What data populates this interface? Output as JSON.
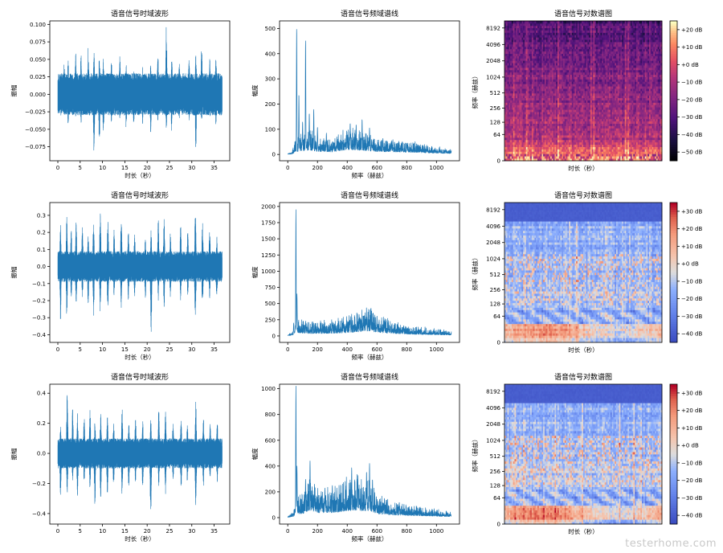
{
  "watermark": "testerhome.com",
  "colors": {
    "line": "#1f77b4",
    "axis": "#000000"
  },
  "chart_data": [
    {
      "type": "line",
      "kind": "waveform",
      "row": 0,
      "col": 0,
      "title": "语音信号时域波形",
      "xlabel": "时长（秒）",
      "ylabel": "振幅",
      "xlim": [
        -1.8,
        38.5
      ],
      "ylim": [
        -0.095,
        0.105
      ],
      "xticks": [
        0,
        5,
        10,
        15,
        20,
        25,
        30,
        35
      ],
      "xtick_labels": [
        "0",
        "5",
        "10",
        "15",
        "20",
        "25",
        "30",
        "35"
      ],
      "yticks": [
        -0.075,
        -0.05,
        -0.025,
        0.0,
        0.025,
        0.05,
        0.075,
        0.1
      ],
      "ytick_labels": [
        "−0.075",
        "−0.050",
        "−0.025",
        "0.000",
        "0.025",
        "0.050",
        "0.075",
        "0.100"
      ],
      "duration": 36.8,
      "envelope_max": 0.03,
      "peaks": [
        [
          1.4,
          0.043,
          -0.035
        ],
        [
          2.3,
          0.052,
          -0.046
        ],
        [
          4.0,
          0.06,
          -0.035
        ],
        [
          5.2,
          0.06,
          -0.045
        ],
        [
          6.8,
          0.07,
          -0.03
        ],
        [
          8.1,
          0.06,
          -0.085
        ],
        [
          9.3,
          0.062,
          -0.072
        ],
        [
          10.2,
          0.055,
          -0.06
        ],
        [
          12.0,
          0.055,
          -0.045
        ],
        [
          13.9,
          0.058,
          -0.04
        ],
        [
          15.3,
          0.045,
          -0.05
        ],
        [
          17.0,
          0.035,
          -0.045
        ],
        [
          19.0,
          0.04,
          -0.045
        ],
        [
          20.8,
          0.045,
          -0.055
        ],
        [
          22.4,
          0.062,
          -0.04
        ],
        [
          24.3,
          0.1,
          -0.05
        ],
        [
          25.5,
          0.058,
          -0.055
        ],
        [
          27.2,
          0.048,
          -0.04
        ],
        [
          29.4,
          0.052,
          -0.045
        ],
        [
          30.9,
          0.06,
          -0.083
        ],
        [
          32.2,
          0.07,
          -0.04
        ],
        [
          34.0,
          0.055,
          -0.035
        ],
        [
          35.4,
          0.06,
          -0.045
        ]
      ]
    },
    {
      "type": "line",
      "kind": "spectrum",
      "row": 0,
      "col": 1,
      "title": "语音信号频域谱线",
      "xlabel": "频率（赫兹）",
      "ylabel": "幅度",
      "xlim": [
        -55,
        1155
      ],
      "ylim": [
        -25,
        530
      ],
      "xticks": [
        0,
        200,
        400,
        600,
        800,
        1000
      ],
      "xtick_labels": [
        "0",
        "200",
        "400",
        "600",
        "800",
        "1000"
      ],
      "yticks": [
        0,
        100,
        200,
        300,
        400,
        500
      ],
      "ytick_labels": [
        "0",
        "100",
        "200",
        "300",
        "400",
        "500"
      ],
      "fmax": 1100,
      "base": [
        [
          0,
          3
        ],
        [
          30,
          8
        ],
        [
          50,
          40
        ],
        [
          80,
          55
        ],
        [
          120,
          55
        ],
        [
          150,
          70
        ],
        [
          200,
          45
        ],
        [
          300,
          40
        ],
        [
          400,
          75
        ],
        [
          500,
          65
        ],
        [
          600,
          45
        ],
        [
          800,
          35
        ],
        [
          1000,
          20
        ],
        [
          1100,
          15
        ]
      ],
      "peaks": [
        [
          60,
          505
        ],
        [
          75,
          240
        ],
        [
          120,
          455
        ],
        [
          100,
          130
        ],
        [
          145,
          165
        ],
        [
          175,
          180
        ],
        [
          200,
          110
        ],
        [
          260,
          85
        ],
        [
          330,
          70
        ],
        [
          420,
          125
        ],
        [
          460,
          120
        ],
        [
          500,
          140
        ],
        [
          550,
          105
        ],
        [
          640,
          65
        ],
        [
          700,
          55
        ],
        [
          800,
          45
        ]
      ]
    },
    {
      "type": "heatmap",
      "kind": "spectrogram",
      "row": 0,
      "col": 2,
      "cmap": "magma",
      "title": "语音信号对数谱图",
      "xlabel": "时长（秒）",
      "ylabel": "频率（赫兹）",
      "yticks": [
        0,
        64,
        128,
        256,
        512,
        1024,
        2048,
        4096,
        8192
      ],
      "ytick_labels": [
        "0",
        "64",
        "128",
        "256",
        "512",
        "1024",
        "2048",
        "4096",
        "8192"
      ],
      "colorbar_ticks": [
        -50,
        -40,
        -30,
        -20,
        -10,
        0,
        10,
        20
      ],
      "colorbar_labels": [
        "−50 dB",
        "−40 dB",
        "−30 dB",
        "−20 dB",
        "−10 dB",
        "+0 dB",
        "+10 dB",
        "+20 dB"
      ],
      "clim": [
        -55,
        25
      ],
      "has_cutoff": false
    },
    {
      "type": "line",
      "kind": "waveform",
      "row": 1,
      "col": 0,
      "title": "语音信号时域波形",
      "xlabel": "时长（秒）",
      "ylabel": "振幅",
      "xlim": [
        -1.8,
        38.5
      ],
      "ylim": [
        -0.445,
        0.375
      ],
      "xticks": [
        0,
        5,
        10,
        15,
        20,
        25,
        30,
        35
      ],
      "xtick_labels": [
        "0",
        "5",
        "10",
        "15",
        "20",
        "25",
        "30",
        "35"
      ],
      "yticks": [
        -0.4,
        -0.3,
        -0.2,
        -0.1,
        0.0,
        0.1,
        0.2,
        0.3
      ],
      "ytick_labels": [
        "−0.4",
        "−0.3",
        "−0.2",
        "−0.1",
        "0.0",
        "0.1",
        "0.2",
        "0.3"
      ],
      "duration": 36.8,
      "envelope_max": 0.09,
      "peaks": [
        [
          0.6,
          0.25,
          -0.32
        ],
        [
          2.0,
          0.3,
          -0.3
        ],
        [
          3.0,
          0.22,
          -0.2
        ],
        [
          4.1,
          0.28,
          -0.25
        ],
        [
          5.5,
          0.25,
          -0.18
        ],
        [
          6.8,
          0.2,
          -0.22
        ],
        [
          8.0,
          0.27,
          -0.3
        ],
        [
          9.5,
          0.34,
          -0.3
        ],
        [
          11.2,
          0.3,
          -0.28
        ],
        [
          12.6,
          0.22,
          -0.18
        ],
        [
          14.2,
          0.3,
          -0.25
        ],
        [
          15.8,
          0.22,
          -0.2
        ],
        [
          17.2,
          0.2,
          -0.18
        ],
        [
          19.6,
          0.18,
          -0.2
        ],
        [
          20.9,
          0.22,
          -0.42
        ],
        [
          22.5,
          0.28,
          -0.2
        ],
        [
          23.8,
          0.3,
          -0.25
        ],
        [
          25.2,
          0.2,
          -0.18
        ],
        [
          27.5,
          0.25,
          -0.2
        ],
        [
          29.1,
          0.22,
          -0.18
        ],
        [
          30.8,
          0.34,
          -0.35
        ],
        [
          32.4,
          0.26,
          -0.25
        ],
        [
          34.0,
          0.23,
          -0.2
        ],
        [
          35.6,
          0.18,
          -0.22
        ]
      ]
    },
    {
      "type": "line",
      "kind": "spectrum",
      "row": 1,
      "col": 1,
      "title": "语音信号频域谱线",
      "xlabel": "频率（赫兹）",
      "ylabel": "幅度",
      "xlim": [
        -55,
        1155
      ],
      "ylim": [
        -100,
        2060
      ],
      "xticks": [
        0,
        200,
        400,
        600,
        800,
        1000
      ],
      "xtick_labels": [
        "0",
        "200",
        "400",
        "600",
        "800",
        "1000"
      ],
      "yticks": [
        0,
        250,
        500,
        750,
        1000,
        1250,
        1500,
        1750,
        2000
      ],
      "ytick_labels": [
        "0",
        "250",
        "500",
        "750",
        "1000",
        "1250",
        "1500",
        "1750",
        "2000"
      ],
      "fmax": 1100,
      "base": [
        [
          0,
          10
        ],
        [
          40,
          60
        ],
        [
          55,
          250
        ],
        [
          80,
          180
        ],
        [
          150,
          140
        ],
        [
          250,
          150
        ],
        [
          350,
          170
        ],
        [
          450,
          220
        ],
        [
          550,
          300
        ],
        [
          600,
          220
        ],
        [
          700,
          150
        ],
        [
          800,
          110
        ],
        [
          950,
          80
        ],
        [
          1100,
          50
        ]
      ],
      "peaks": [
        [
          55,
          1950
        ],
        [
          62,
          650
        ],
        [
          40,
          200
        ],
        [
          120,
          230
        ],
        [
          170,
          220
        ],
        [
          300,
          200
        ],
        [
          420,
          230
        ],
        [
          480,
          330
        ],
        [
          530,
          380
        ],
        [
          560,
          430
        ],
        [
          600,
          310
        ],
        [
          650,
          240
        ],
        [
          780,
          160
        ]
      ]
    },
    {
      "type": "heatmap",
      "kind": "spectrogram",
      "row": 1,
      "col": 2,
      "cmap": "coolwarm",
      "title": "语音信号对数谱图",
      "xlabel": "时长（秒）",
      "ylabel": "频率（赫兹）",
      "yticks": [
        0,
        64,
        128,
        256,
        512,
        1024,
        2048,
        4096,
        8192
      ],
      "ytick_labels": [
        "0",
        "64",
        "128",
        "256",
        "512",
        "1024",
        "2048",
        "4096",
        "8192"
      ],
      "colorbar_ticks": [
        -40,
        -30,
        -20,
        -10,
        0,
        10,
        20,
        30
      ],
      "colorbar_labels": [
        "−40 dB",
        "−30 dB",
        "−20 dB",
        "−10 dB",
        "+0 dB",
        "+10 dB",
        "+20 dB",
        "+30 dB"
      ],
      "clim": [
        -45,
        35
      ],
      "has_cutoff": true
    },
    {
      "type": "line",
      "kind": "waveform",
      "row": 2,
      "col": 0,
      "title": "语音信号时域波形",
      "xlabel": "时长（秒）",
      "ylabel": "振幅",
      "xlim": [
        -1.8,
        38.5
      ],
      "ylim": [
        -0.47,
        0.46
      ],
      "xticks": [
        0,
        5,
        10,
        15,
        20,
        25,
        30,
        35
      ],
      "xtick_labels": [
        "0",
        "5",
        "10",
        "15",
        "20",
        "25",
        "30",
        "35"
      ],
      "yticks": [
        -0.4,
        -0.2,
        0.0,
        0.2,
        0.4
      ],
      "ytick_labels": [
        "−0.4",
        "−0.2",
        "0.0",
        "0.2",
        "0.4"
      ],
      "duration": 36.8,
      "envelope_max": 0.1,
      "peaks": [
        [
          0.6,
          0.2,
          -0.3
        ],
        [
          2.1,
          0.42,
          -0.28
        ],
        [
          3.3,
          0.3,
          -0.2
        ],
        [
          4.4,
          0.27,
          -0.3
        ],
        [
          5.9,
          0.25,
          -0.2
        ],
        [
          7.2,
          0.3,
          -0.25
        ],
        [
          8.3,
          0.22,
          -0.35
        ],
        [
          9.6,
          0.3,
          -0.3
        ],
        [
          11.1,
          0.25,
          -0.3
        ],
        [
          12.5,
          0.22,
          -0.25
        ],
        [
          14.4,
          0.3,
          -0.3
        ],
        [
          15.9,
          0.2,
          -0.25
        ],
        [
          17.4,
          0.25,
          -0.2
        ],
        [
          19.0,
          0.22,
          -0.23
        ],
        [
          20.8,
          0.25,
          -0.44
        ],
        [
          22.6,
          0.3,
          -0.22
        ],
        [
          24.1,
          0.3,
          -0.28
        ],
        [
          25.8,
          0.2,
          -0.2
        ],
        [
          27.6,
          0.22,
          -0.25
        ],
        [
          29.0,
          0.2,
          -0.2
        ],
        [
          30.9,
          0.35,
          -0.38
        ],
        [
          32.6,
          0.25,
          -0.23
        ],
        [
          34.1,
          0.2,
          -0.2
        ],
        [
          35.7,
          0.22,
          -0.2
        ]
      ]
    },
    {
      "type": "line",
      "kind": "spectrum",
      "row": 2,
      "col": 1,
      "title": "语音信号频域谱线",
      "xlabel": "频率（赫兹）",
      "ylabel": "幅度",
      "xlim": [
        -55,
        1155
      ],
      "ylim": [
        -50,
        1035
      ],
      "xticks": [
        0,
        200,
        400,
        600,
        800,
        1000
      ],
      "xtick_labels": [
        "0",
        "200",
        "400",
        "600",
        "800",
        "1000"
      ],
      "yticks": [
        0,
        200,
        400,
        600,
        800,
        1000
      ],
      "ytick_labels": [
        "0",
        "200",
        "400",
        "600",
        "800",
        "1000"
      ],
      "fmax": 1100,
      "base": [
        [
          0,
          5
        ],
        [
          40,
          40
        ],
        [
          55,
          120
        ],
        [
          100,
          120
        ],
        [
          150,
          230
        ],
        [
          200,
          150
        ],
        [
          300,
          150
        ],
        [
          400,
          200
        ],
        [
          450,
          230
        ],
        [
          500,
          200
        ],
        [
          550,
          210
        ],
        [
          600,
          120
        ],
        [
          700,
          80
        ],
        [
          850,
          60
        ],
        [
          1100,
          30
        ]
      ],
      "peaks": [
        [
          55,
          1020
        ],
        [
          62,
          400
        ],
        [
          150,
          440
        ],
        [
          120,
          300
        ],
        [
          180,
          260
        ],
        [
          250,
          230
        ],
        [
          300,
          250
        ],
        [
          330,
          230
        ],
        [
          430,
          390
        ],
        [
          470,
          300
        ],
        [
          530,
          360
        ],
        [
          550,
          420
        ],
        [
          570,
          300
        ],
        [
          650,
          150
        ],
        [
          750,
          120
        ]
      ]
    },
    {
      "type": "heatmap",
      "kind": "spectrogram",
      "row": 2,
      "col": 2,
      "cmap": "coolwarm",
      "title": "语音信号对数谱图",
      "xlabel": "时长（秒）",
      "ylabel": "频率（赫兹）",
      "yticks": [
        0,
        64,
        128,
        256,
        512,
        1024,
        2048,
        4096,
        8192
      ],
      "ytick_labels": [
        "0",
        "64",
        "128",
        "256",
        "512",
        "1024",
        "2048",
        "4096",
        "8192"
      ],
      "colorbar_ticks": [
        -40,
        -30,
        -20,
        -10,
        0,
        10,
        20,
        30
      ],
      "colorbar_labels": [
        "−40 dB",
        "−30 dB",
        "−20 dB",
        "−10 dB",
        "+0 dB",
        "+10 dB",
        "+20 dB",
        "+30 dB"
      ],
      "clim": [
        -45,
        35
      ],
      "has_cutoff": true
    }
  ]
}
